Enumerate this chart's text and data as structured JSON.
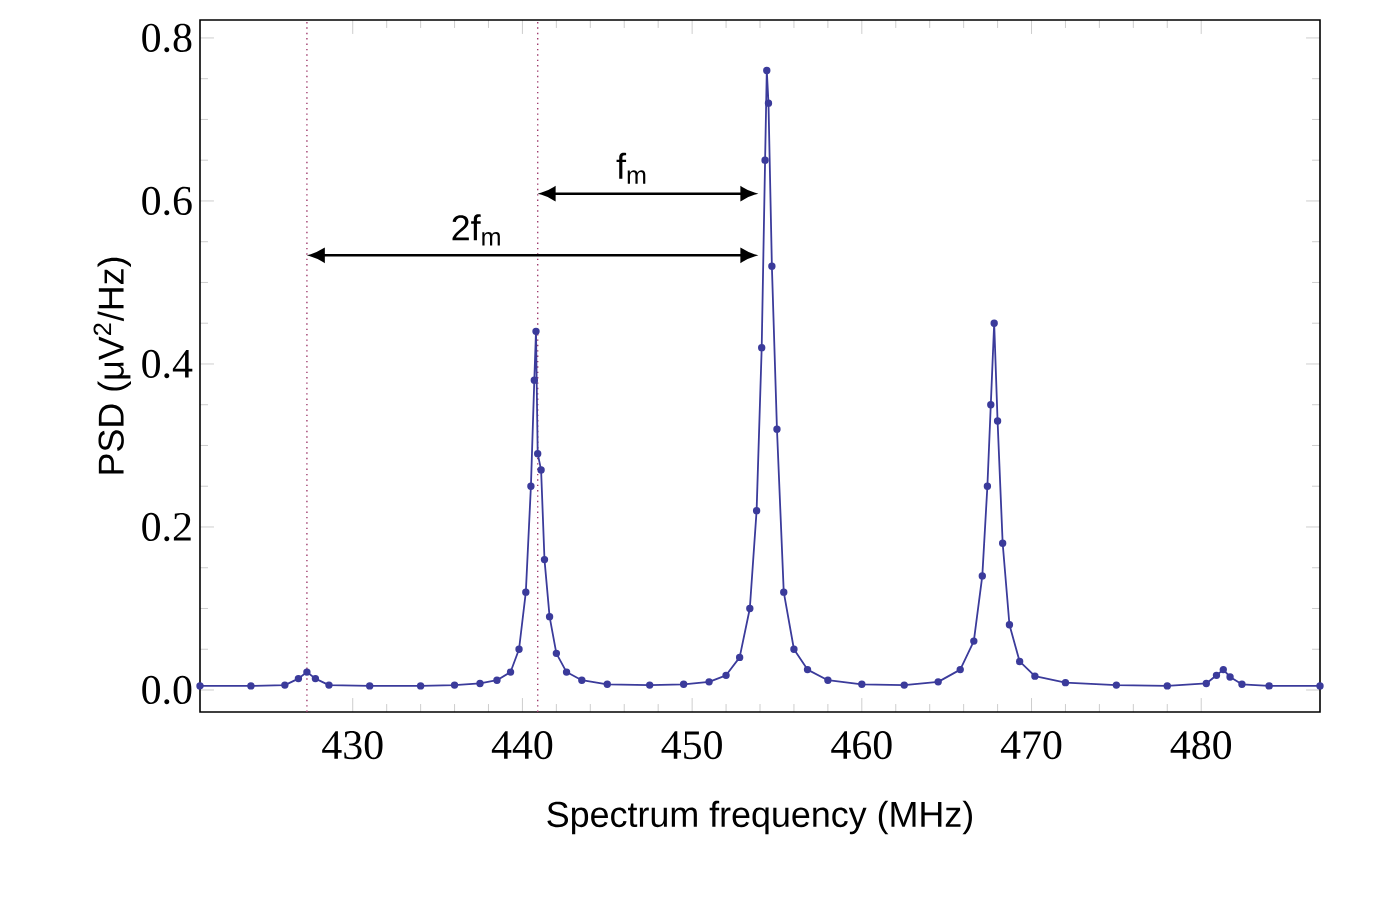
{
  "chart_data": {
    "type": "line",
    "xlabel": "Spectrum frequency (MHz)",
    "ylabel": "PSD (μV$^{2}$/Hz)",
    "xlim": [
      421,
      487
    ],
    "ylim": [
      -0.027,
      0.822
    ],
    "xticks": [
      430,
      440,
      450,
      460,
      470,
      480
    ],
    "yticks": [
      {
        "value": 0,
        "label": "0.0"
      },
      {
        "value": 0.2,
        "label": "0.2"
      },
      {
        "value": 0.4,
        "label": "0.4"
      },
      {
        "value": 0.6,
        "label": "0.6"
      },
      {
        "value": 0.8,
        "label": "0.8"
      }
    ],
    "marker": "circle",
    "line_style": "solid",
    "grid": false,
    "series": [
      {
        "color": "#3b3b9b",
        "x": [
          421,
          424,
          426,
          426.8,
          427.3,
          427.8,
          428.6,
          431,
          434,
          436,
          437.5,
          438.5,
          439.3,
          439.8,
          440.2,
          440.5,
          440.7,
          440.8,
          440.9,
          441.1,
          441.3,
          441.6,
          442,
          442.6,
          443.5,
          445,
          447.5,
          449.5,
          451,
          452,
          452.8,
          453.4,
          453.8,
          454.1,
          454.3,
          454.4,
          454.5,
          454.7,
          455,
          455.4,
          456,
          456.8,
          458,
          460,
          462.5,
          464.5,
          465.8,
          466.6,
          467.1,
          467.4,
          467.6,
          467.8,
          468,
          468.3,
          468.7,
          469.3,
          470.2,
          472,
          475,
          478,
          480.3,
          480.9,
          481.3,
          481.7,
          482.4,
          484,
          487
        ],
        "values": [
          0.005,
          0.005,
          0.006,
          0.014,
          0.022,
          0.014,
          0.006,
          0.005,
          0.005,
          0.006,
          0.008,
          0.012,
          0.022,
          0.05,
          0.12,
          0.25,
          0.38,
          0.44,
          0.29,
          0.27,
          0.16,
          0.09,
          0.045,
          0.022,
          0.012,
          0.007,
          0.006,
          0.007,
          0.01,
          0.018,
          0.04,
          0.1,
          0.22,
          0.42,
          0.65,
          0.76,
          0.72,
          0.52,
          0.32,
          0.12,
          0.05,
          0.025,
          0.012,
          0.007,
          0.006,
          0.01,
          0.025,
          0.06,
          0.14,
          0.25,
          0.35,
          0.45,
          0.33,
          0.18,
          0.08,
          0.035,
          0.017,
          0.009,
          0.006,
          0.005,
          0.008,
          0.018,
          0.025,
          0.016,
          0.007,
          0.005,
          0.005
        ]
      }
    ],
    "ref_lines": [
      {
        "axis": "x",
        "value": 440.9,
        "color": "#a03c6e",
        "line_style": "dotted"
      },
      {
        "axis": "x",
        "value": 427.3,
        "color": "#a03c6e",
        "line_style": "dotted"
      }
    ],
    "annotations": [
      "f$_{m}$",
      "2f$_{m}$"
    ]
  }
}
